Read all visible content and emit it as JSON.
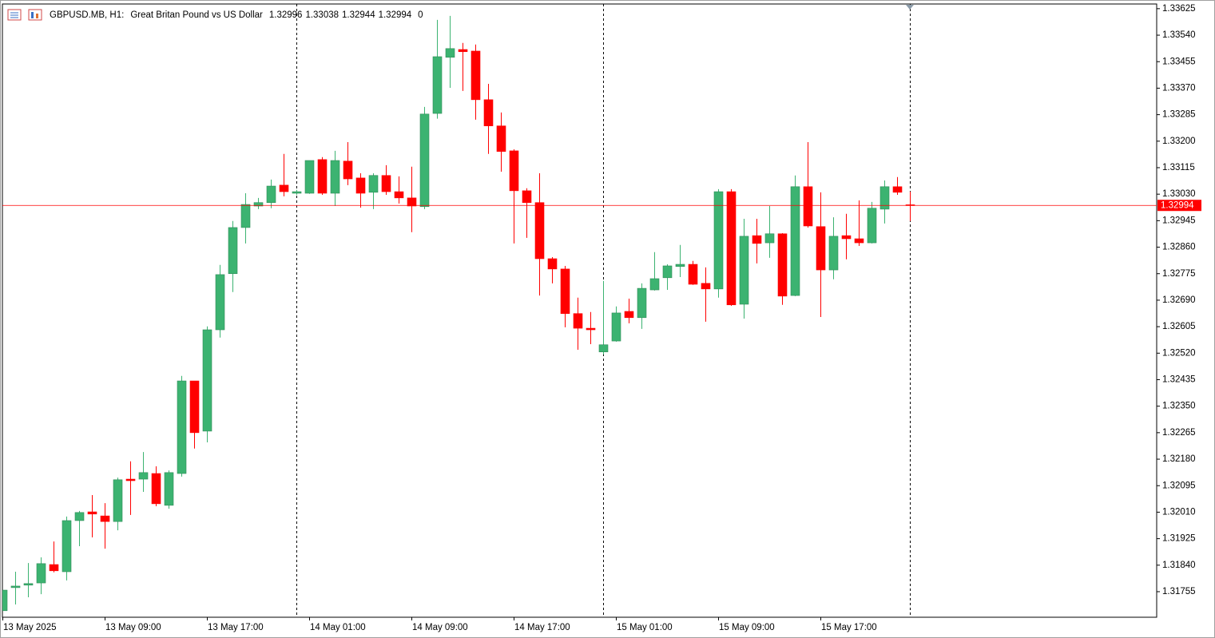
{
  "chart_data": {
    "type": "candlestick",
    "symbol": "GBPUSD.MB, H1:",
    "title": "Great Britan Pound vs US Dollar",
    "volume": 0,
    "categories": [
      "13 May 2025",
      null,
      null,
      null,
      null,
      null,
      null,
      null,
      "13 May 09:00",
      null,
      null,
      null,
      null,
      null,
      null,
      null,
      "13 May 17:00",
      null,
      null,
      null,
      null,
      null,
      null,
      null,
      "14 May 01:00",
      null,
      null,
      null,
      null,
      null,
      null,
      null,
      "14 May 09:00",
      null,
      null,
      null,
      null,
      null,
      null,
      null,
      "14 May 17:00",
      null,
      null,
      null,
      null,
      null,
      null,
      null,
      "15 May 01:00",
      null,
      null,
      null,
      null,
      null,
      null,
      null,
      "15 May 09:00",
      null,
      null,
      null,
      null,
      null,
      null,
      null,
      "15 May 17:00",
      null,
      null,
      null,
      null,
      null,
      null,
      null
    ],
    "open": [
      1.31694,
      1.31768,
      1.31776,
      1.31783,
      1.31842,
      1.31819,
      1.31983,
      1.32011,
      1.31998,
      1.3198,
      1.32116,
      1.32116,
      1.32134,
      1.32032,
      1.32134,
      1.32431,
      1.3227,
      1.32595,
      1.32775,
      1.32923,
      1.32992,
      1.33003,
      1.33059,
      1.33033,
      1.33033,
      1.33141,
      1.33033,
      1.33136,
      1.33082,
      1.33036,
      1.3309,
      1.33038,
      1.33018,
      1.3299,
      1.33289,
      1.33469,
      1.33494,
      1.33489,
      1.33333,
      1.33249,
      1.33169,
      1.33041,
      1.33003,
      1.32823,
      1.3279,
      1.32647,
      1.326,
      1.32524,
      1.32559,
      1.32654,
      1.32634,
      1.32723,
      1.32762,
      1.32798,
      1.32805,
      1.32744,
      1.32726,
      1.33038,
      1.32677,
      1.32897,
      1.32874,
      1.32903,
      1.32705,
      1.33054,
      1.32926,
      1.32787,
      1.32897,
      1.32887,
      1.32874,
      1.32982,
      1.33054,
      1.32996
    ],
    "high": [
      1.3176,
      1.31819,
      1.31847,
      1.31865,
      1.31916,
      1.31996,
      1.32014,
      1.32065,
      1.32039,
      1.32121,
      1.32173,
      1.32203,
      1.32157,
      1.32144,
      1.32447,
      1.32431,
      1.32606,
      1.32803,
      1.32944,
      1.33033,
      1.33018,
      1.33077,
      1.33159,
      1.33044,
      1.33138,
      1.33149,
      1.33169,
      1.33197,
      1.33097,
      1.33097,
      1.33123,
      1.33087,
      1.33118,
      1.3331,
      1.33589,
      1.33602,
      1.33515,
      1.3351,
      1.33384,
      1.33292,
      1.33174,
      1.33049,
      1.33097,
      1.32828,
      1.328,
      1.32698,
      1.32652,
      1.32752,
      1.3267,
      1.32695,
      1.32744,
      1.32844,
      1.32805,
      1.32867,
      1.32816,
      1.32795,
      1.33046,
      1.33046,
      1.32951,
      1.32951,
      1.32992,
      1.32905,
      1.3309,
      1.33197,
      1.33036,
      1.32956,
      1.32967,
      1.3301,
      1.33005,
      1.33074,
      1.33085,
      1.33038
    ],
    "low": [
      1.31694,
      1.31714,
      1.31737,
      1.31747,
      1.31817,
      1.31791,
      1.31901,
      1.31929,
      1.31893,
      1.31952,
      1.32001,
      1.32075,
      1.32029,
      1.32021,
      1.32124,
      1.32214,
      1.32234,
      1.3257,
      1.32716,
      1.32872,
      1.32982,
      1.32985,
      1.33023,
      1.33028,
      1.33031,
      1.33028,
      1.32992,
      1.33059,
      1.32987,
      1.32982,
      1.33028,
      1.33,
      1.32908,
      1.32982,
      1.33272,
      1.33371,
      1.33361,
      1.33269,
      1.33159,
      1.33102,
      1.32872,
      1.3289,
      1.32705,
      1.32744,
      1.32603,
      1.32531,
      1.32549,
      1.32516,
      1.32557,
      1.32616,
      1.32598,
      1.32721,
      1.32723,
      1.32764,
      1.32739,
      1.32621,
      1.32698,
      1.32672,
      1.32631,
      1.32808,
      1.32826,
      1.32675,
      1.32703,
      1.32923,
      1.32636,
      1.32757,
      1.32821,
      1.32864,
      1.32872,
      1.32936,
      1.33028,
      1.32944
    ],
    "close": [
      1.3176,
      1.31773,
      1.31781,
      1.31845,
      1.31822,
      1.31983,
      1.32009,
      1.32004,
      1.3198,
      1.32114,
      1.32111,
      1.32137,
      1.32037,
      1.32137,
      1.32431,
      1.32265,
      1.32595,
      1.32772,
      1.32923,
      1.32997,
      1.33003,
      1.33056,
      1.33038,
      1.33038,
      1.33138,
      1.33033,
      1.33138,
      1.33079,
      1.33033,
      1.3309,
      1.33038,
      1.33018,
      1.32992,
      1.33287,
      1.33471,
      1.33497,
      1.33487,
      1.33333,
      1.33249,
      1.33167,
      1.33041,
      1.33003,
      1.32823,
      1.3279,
      1.32647,
      1.326,
      1.32595,
      1.32547,
      1.32649,
      1.32634,
      1.32728,
      1.32759,
      1.328,
      1.32805,
      1.32741,
      1.32726,
      1.33038,
      1.32675,
      1.32895,
      1.32872,
      1.32903,
      1.32703,
      1.33054,
      1.32928,
      1.32787,
      1.32895,
      1.32887,
      1.32874,
      1.32985,
      1.33054,
      1.33036,
      1.32994
    ],
    "up_color": "#3cb371",
    "down_color": "#ff0000",
    "ylim": [
      1.31673,
      1.3364
    ],
    "yticks": [
      1.33625,
      {
        "value": 1.3354,
        "label": "1.33540"
      },
      1.33455,
      {
        "value": 1.3337,
        "label": "1.33370"
      },
      1.33285,
      {
        "value": 1.332,
        "label": "1.33200"
      },
      1.33115,
      {
        "value": 1.3303,
        "label": "1.33030"
      },
      1.32945,
      {
        "value": 1.3286,
        "label": "1.32860"
      },
      1.32775,
      {
        "value": 1.3269,
        "label": "1.32690"
      },
      1.32605,
      {
        "value": 1.3252,
        "label": "1.32520"
      },
      1.32435,
      {
        "value": 1.3235,
        "label": "1.32350"
      },
      1.32265,
      {
        "value": 1.3218,
        "label": "1.32180"
      },
      1.32095,
      {
        "value": 1.3201,
        "label": "1.32010"
      },
      1.31925,
      {
        "value": 1.3184,
        "label": "1.31840"
      },
      1.31755
    ],
    "grid": false
  }
}
